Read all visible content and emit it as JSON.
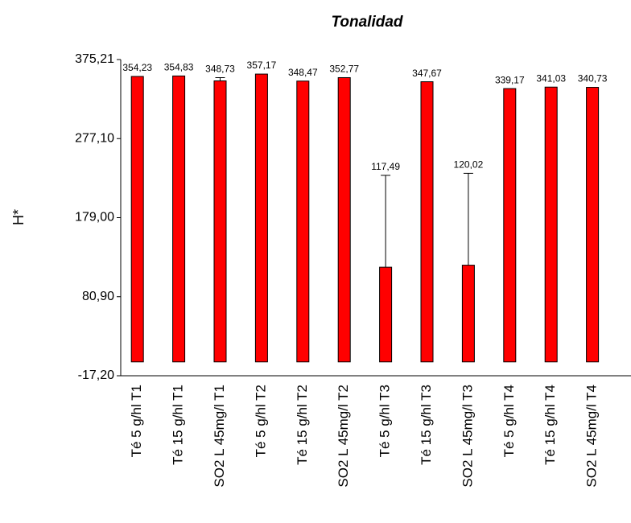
{
  "chart_data": {
    "type": "bar",
    "title": "Tonalidad",
    "y_label": "H*",
    "categories": [
      "Té 5 g/hl T1",
      "Té 15 g/hl T1",
      "SO2 L 45mg/l T1",
      "Té 5 g/hl T2",
      "Té 15 g/hl T2",
      "SO2 L 45mg/l T2",
      "Té 5 g/hl T3",
      "Té 15 g/hl T3",
      "SO2 L 45mg/l T3",
      "Té 5 g/hl T4",
      "Té 15 g/hl T4",
      "SO2 L 45mg/l T4"
    ],
    "values": [
      354.23,
      354.83,
      348.73,
      357.17,
      348.47,
      352.77,
      117.49,
      347.67,
      120.02,
      339.17,
      341.03,
      340.73
    ],
    "value_labels": [
      "354,23",
      "354,83",
      "348,73",
      "357,17",
      "348,47",
      "352,77",
      "117,49",
      "347,67",
      "120,02",
      "339,17",
      "341,03",
      "340,73"
    ],
    "errors": [
      0,
      0,
      4,
      0,
      0,
      0,
      114,
      0,
      114,
      0,
      0,
      0
    ],
    "color": "#ff0000",
    "ylim": [
      -17.2,
      375.21
    ],
    "yticks": [
      {
        "value": -17.2,
        "label": "-17,20"
      },
      {
        "value": 80.9,
        "label": "80,90"
      },
      {
        "value": 179.0,
        "label": "179,00"
      },
      {
        "value": 277.1,
        "label": "277,10"
      },
      {
        "value": 375.21,
        "label": "375,21"
      }
    ]
  }
}
